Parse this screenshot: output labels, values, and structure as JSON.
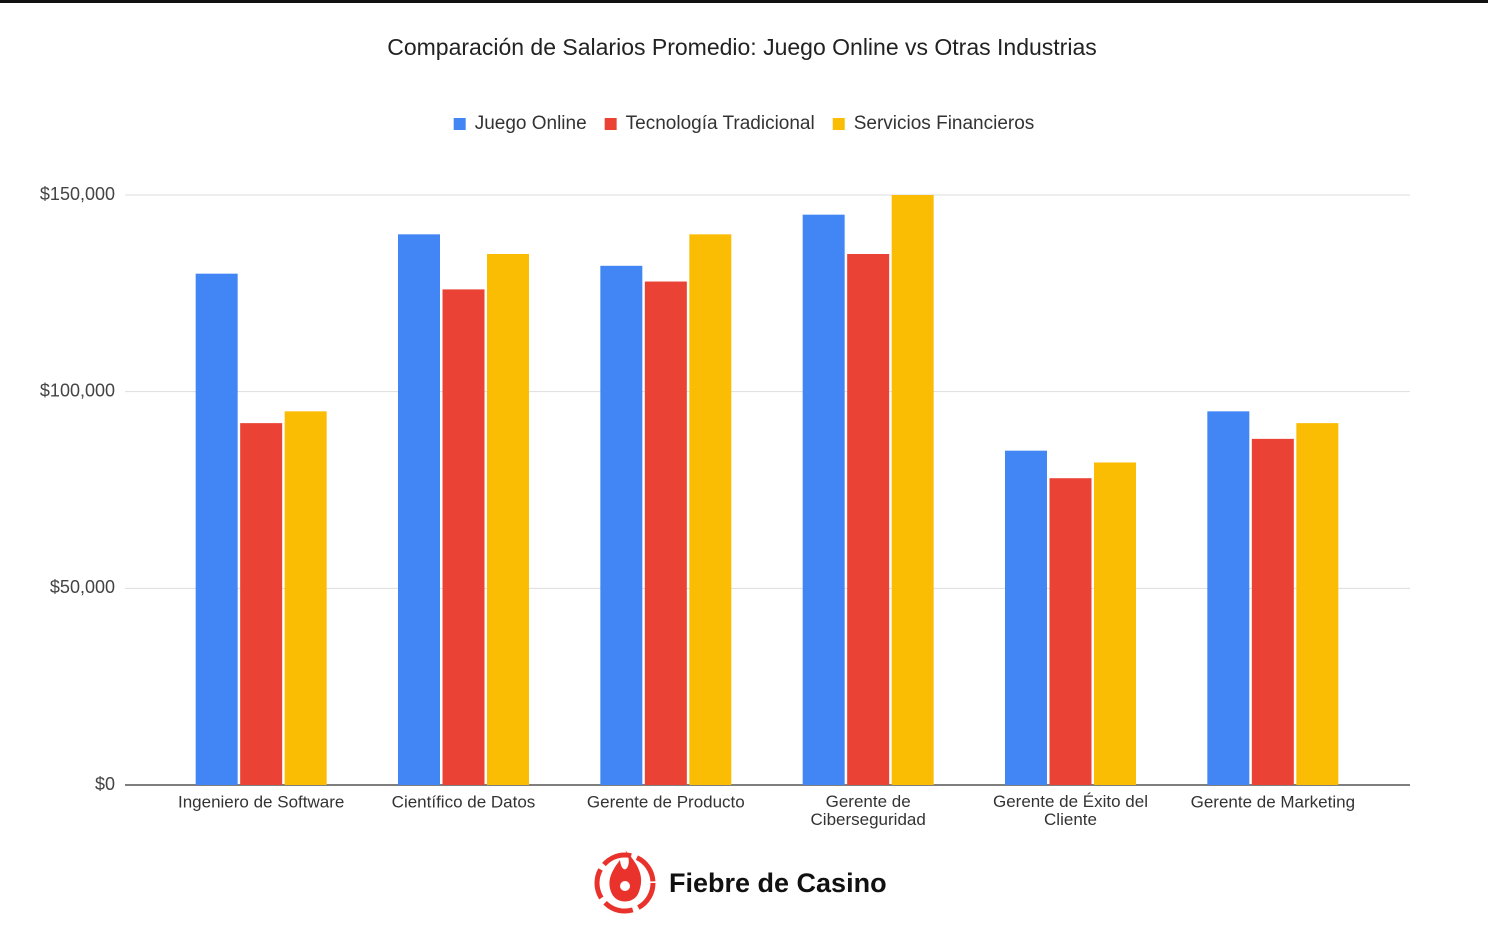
{
  "chart_data": {
    "type": "bar",
    "title": "Comparación de Salarios Promedio: Juego Online vs Otras Industrias",
    "categories": [
      "Ingeniero de Software",
      "Científico de Datos",
      "Gerente de Producto",
      "Gerente de Ciberseguridad",
      "Gerente de Éxito del Cliente",
      "Gerente de Marketing"
    ],
    "series": [
      {
        "name": "Juego Online",
        "color": "#4285f4",
        "values": [
          130000,
          140000,
          132000,
          145000,
          85000,
          95000
        ]
      },
      {
        "name": "Tecnología Tradicional",
        "color": "#ea4335",
        "values": [
          92000,
          126000,
          128000,
          135000,
          78000,
          88000
        ]
      },
      {
        "name": "Servicios Financieros",
        "color": "#fbbc04",
        "values": [
          95000,
          135000,
          140000,
          150000,
          82000,
          92000
        ]
      }
    ],
    "ylim": [
      0,
      150000
    ],
    "yticks": [
      {
        "value": 0,
        "label": "$0"
      },
      {
        "value": 50000,
        "label": "$50,000"
      },
      {
        "value": 100000,
        "label": "$100,000"
      },
      {
        "value": 150000,
        "label": "$150,000"
      }
    ],
    "grid": true,
    "legend": "top"
  },
  "brand": "Fiebre de Casino"
}
